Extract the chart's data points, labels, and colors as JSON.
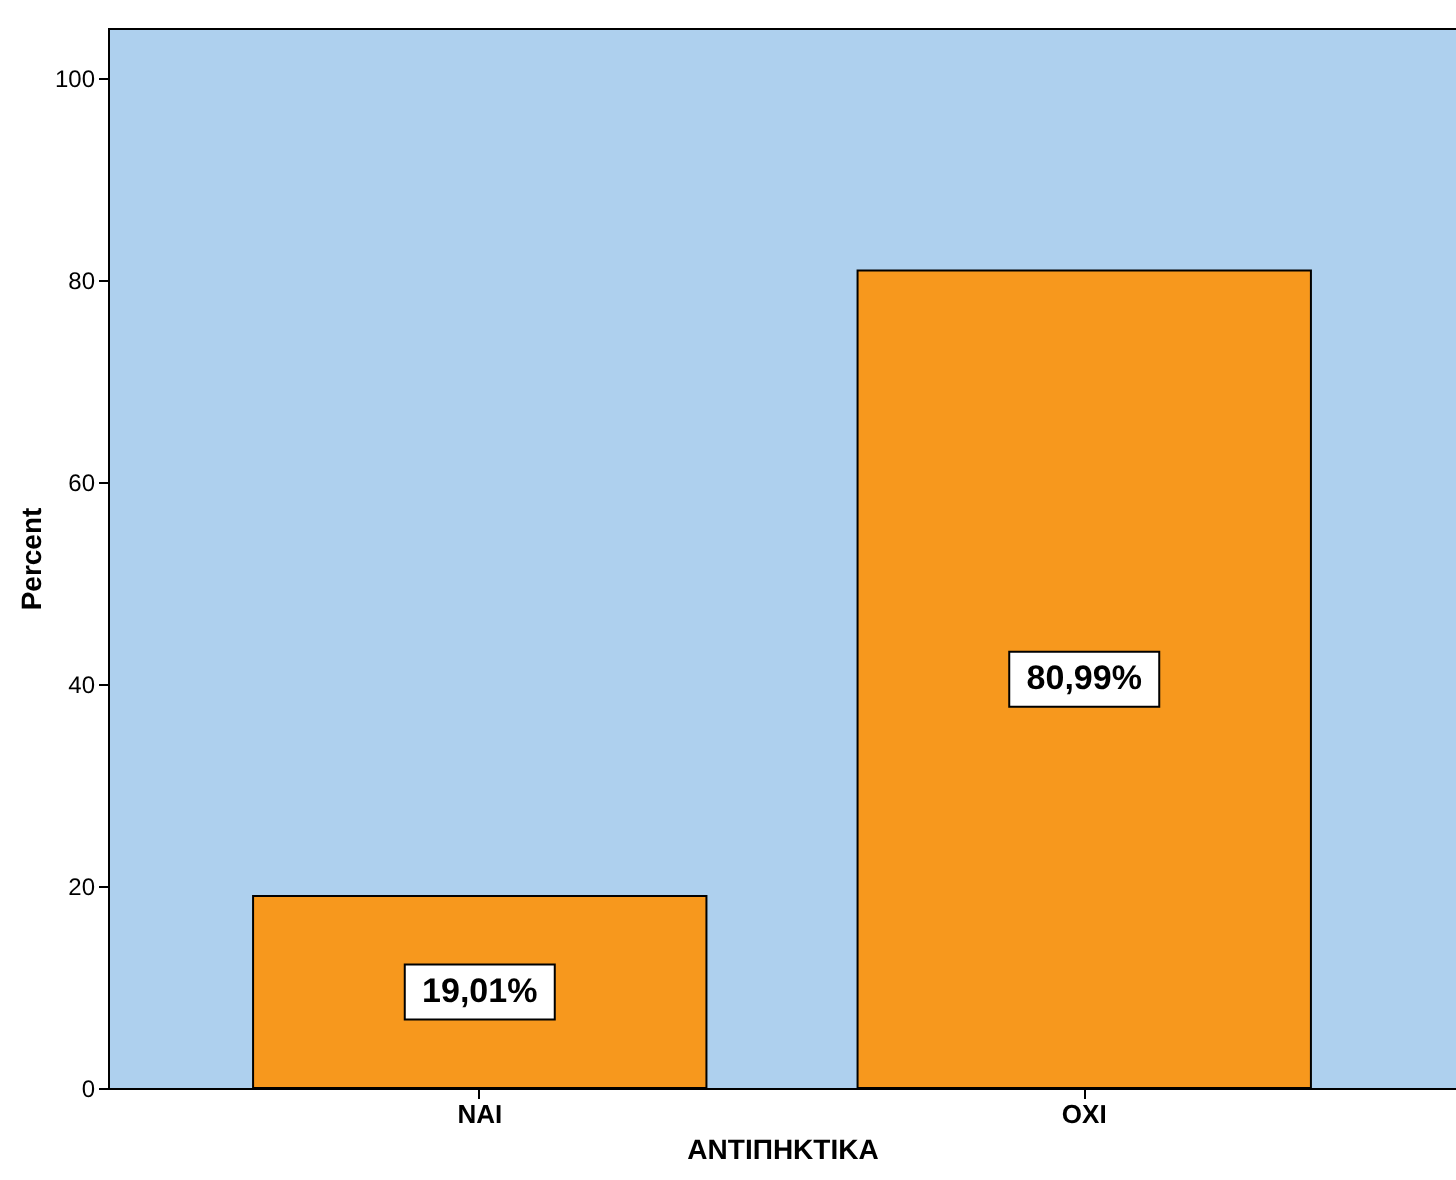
{
  "chart_data": {
    "type": "bar",
    "xlabel": "ΑΝΤΙΠΗΚΤΙΚΑ",
    "ylabel": "Percent",
    "categories": [
      "ΝΑΙ",
      "ΟΧΙ"
    ],
    "values": [
      19.01,
      80.99
    ],
    "color": "#f7981d",
    "value_labels": [
      "19,01%",
      "80,99%"
    ],
    "ylim": [
      0,
      105
    ],
    "yticks": [
      0,
      20,
      40,
      60,
      80,
      100
    ],
    "grid": false
  }
}
